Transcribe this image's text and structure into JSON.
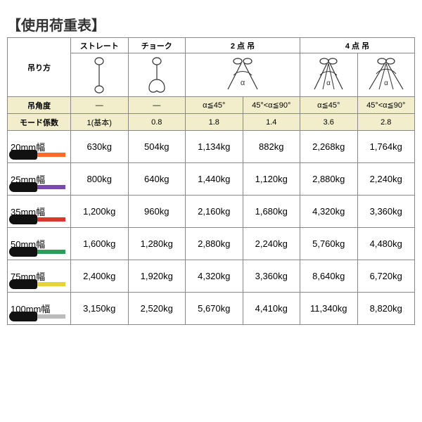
{
  "title": "【使用荷重表】",
  "labels": {
    "hanging_method": "吊り方",
    "hanging_angle": "吊角度",
    "mode_coefficient": "モード係数"
  },
  "methods": {
    "straight": "ストレート",
    "choke": "チョーク",
    "two_point": "2 点 吊",
    "four_point": "4 点 吊"
  },
  "angles": {
    "dash": "―",
    "le45": "α≦45°",
    "gt45_le90": "45°<α≦90°"
  },
  "modes": {
    "base": "1(基本)",
    "m08": "0.8",
    "m18": "1.8",
    "m14": "1.4",
    "m36": "3.6",
    "m28": "2.8"
  },
  "sizes": [
    {
      "label": "20mm幅",
      "color": "#ff6a2b",
      "values": [
        "630kg",
        "504kg",
        "1,134kg",
        "882kg",
        "2,268kg",
        "1,764kg"
      ]
    },
    {
      "label": "25mm幅",
      "color": "#7a4aa8",
      "values": [
        "800kg",
        "640kg",
        "1,440kg",
        "1,120kg",
        "2,880kg",
        "2,240kg"
      ]
    },
    {
      "label": "35mm幅",
      "color": "#d8392f",
      "values": [
        "1,200kg",
        "960kg",
        "2,160kg",
        "1,680kg",
        "4,320kg",
        "3,360kg"
      ]
    },
    {
      "label": "50mm幅",
      "color": "#2a9d5a",
      "values": [
        "1,600kg",
        "1,280kg",
        "2,880kg",
        "2,240kg",
        "5,760kg",
        "4,480kg"
      ]
    },
    {
      "label": "75mm幅",
      "color": "#e6d239",
      "values": [
        "2,400kg",
        "1,920kg",
        "4,320kg",
        "3,360kg",
        "8,640kg",
        "6,720kg"
      ]
    },
    {
      "label": "100mm幅",
      "color": "#bcbcbc",
      "values": [
        "3,150kg",
        "2,520kg",
        "5,670kg",
        "4,410kg",
        "11,340kg",
        "8,820kg"
      ]
    }
  ],
  "colors": {
    "header_bg": "#f2eecb",
    "border": "#888888",
    "text": "#333333"
  }
}
